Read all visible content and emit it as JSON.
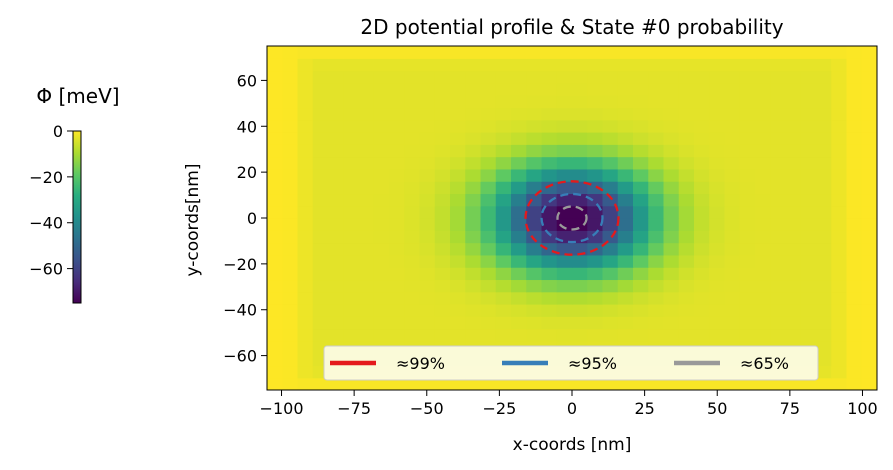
{
  "chart_data": {
    "type": "heatmap",
    "title": "2D potential profile & State #0 probability",
    "xlabel": "x-coords [nm]",
    "ylabel": "y-coords[nm]",
    "xlim": [
      -105,
      105
    ],
    "ylim": [
      -75,
      75
    ],
    "xticks": [
      -100,
      -75,
      -50,
      -25,
      0,
      25,
      50,
      75,
      100
    ],
    "yticks": [
      -60,
      -40,
      -20,
      0,
      20,
      40,
      60
    ],
    "colorbar": {
      "label": "Φ [meV]",
      "range": [
        -75,
        0
      ],
      "ticks": [
        0,
        -20,
        -40,
        -60
      ],
      "colormap": "viridis"
    },
    "potential": {
      "minimum_meV": -75,
      "center": [
        0,
        0
      ],
      "plateau_meV": -3
    },
    "contours": [
      {
        "label": "≈99%",
        "color": "#e41a1c",
        "semi_axes_nm": [
          16,
          16
        ]
      },
      {
        "label": "≈95%",
        "color": "#377eb8",
        "semi_axes_nm": [
          10.5,
          10.5
        ]
      },
      {
        "label": "≈65%",
        "color": "#999999",
        "semi_axes_nm": [
          5,
          5
        ]
      }
    ],
    "legend": {
      "placement": "bottom-center",
      "columns": 3
    }
  }
}
